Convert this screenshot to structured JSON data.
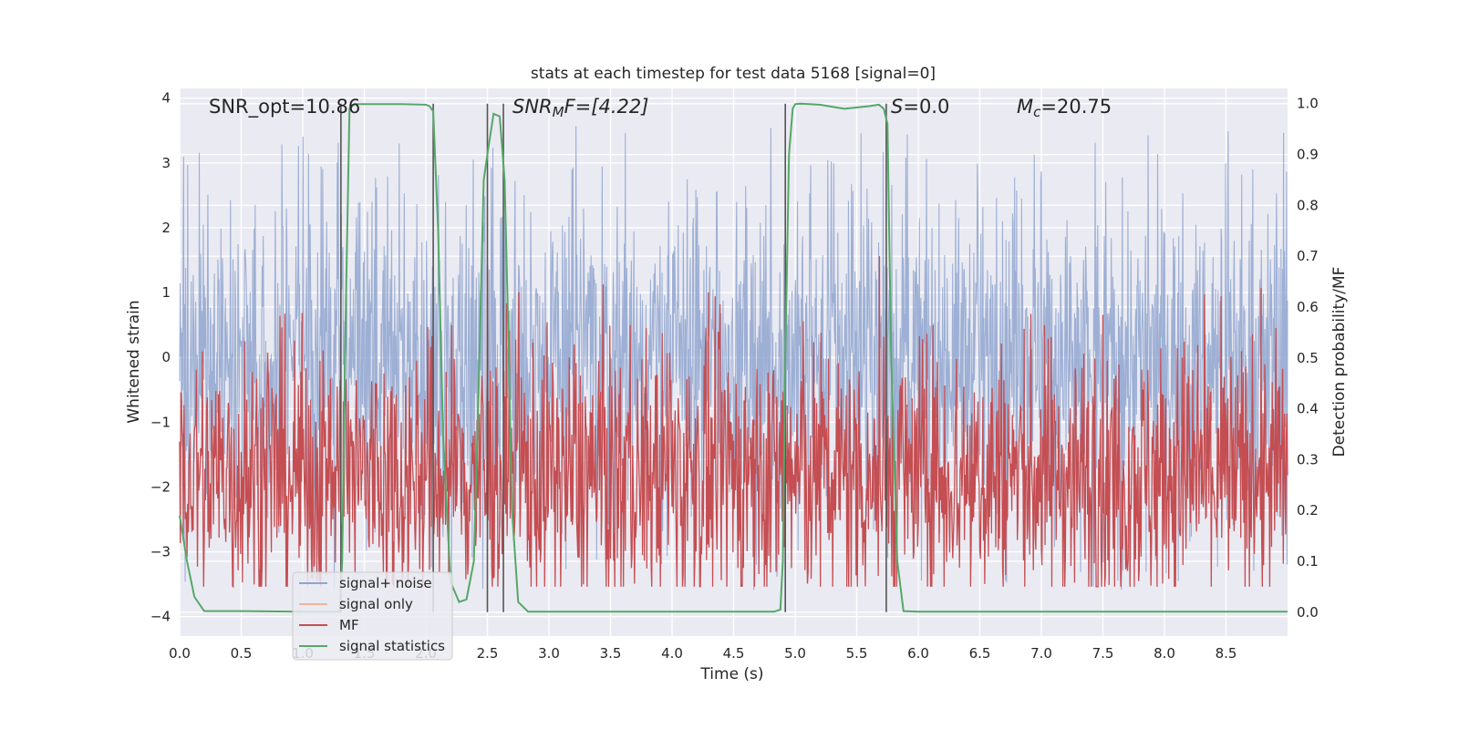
{
  "chart_data": {
    "type": "line",
    "title": "stats at each timestep for test data 5168 [signal=0]",
    "xlabel": "Time (s)",
    "ylabel_left": "Whitened strain",
    "ylabel_right": "Detection probability/MF",
    "xlim": [
      0,
      9.0
    ],
    "ylim_left": [
      -4.3,
      4.15
    ],
    "ylim_right": [
      -0.047,
      1.03
    ],
    "x_ticks": [
      0.0,
      0.5,
      1.0,
      1.5,
      2.0,
      2.5,
      3.0,
      3.5,
      4.0,
      4.5,
      5.0,
      5.5,
      6.0,
      6.5,
      7.0,
      7.5,
      8.0,
      8.5
    ],
    "x_tick_labels": [
      "0.0",
      "0.5",
      "1.0",
      "1.5",
      "2.0",
      "2.5",
      "3.0",
      "3.5",
      "4.0",
      "4.5",
      "5.0",
      "5.5",
      "6.0",
      "6.5",
      "7.0",
      "7.5",
      "8.0",
      "8.5"
    ],
    "y_left_ticks": [
      4,
      3,
      2,
      1,
      0,
      -1,
      -2,
      -3,
      -4
    ],
    "y_left_tick_labels": [
      "4",
      "3",
      "2",
      "1",
      "0",
      "−1",
      "−2",
      "−3",
      "−4"
    ],
    "y_right_ticks": [
      1.0,
      0.9,
      0.8,
      0.7,
      0.6,
      0.5,
      0.4,
      0.3,
      0.2,
      0.1,
      0.0
    ],
    "y_right_tick_labels": [
      "1.0",
      "0.9",
      "0.8",
      "0.7",
      "0.6",
      "0.5",
      "0.4",
      "0.3",
      "0.2",
      "0.1",
      "0.0"
    ],
    "annotations": {
      "snr_opt": "SNR_opt=10.86",
      "snr_mf_main": "SNR",
      "snr_mf_sub": "M",
      "snr_mf_rest": "F=[4.22]",
      "s_italic": "S",
      "s_rest": "=0.0",
      "mc_main": "M",
      "mc_sub": "c",
      "mc_rest": "=20.75"
    },
    "legend": {
      "position": "lower-left",
      "entries": [
        {
          "label": "signal+ noise",
          "color": "#8fa5cf"
        },
        {
          "label": "signal only",
          "color": "#f0b59a"
        },
        {
          "label": "MF",
          "color": "#c44e52"
        },
        {
          "label": "signal statistics",
          "color": "#55a868"
        }
      ]
    },
    "vertical_lines_x": [
      1.31,
      2.06,
      2.5,
      2.63,
      4.92,
      5.74
    ],
    "series": [
      {
        "name": "signal statistics",
        "axis": "right",
        "color": "#55a868",
        "x": [
          0.0,
          0.06,
          0.12,
          0.2,
          0.5,
          1.0,
          1.3,
          1.32,
          1.35,
          1.38,
          1.42,
          1.5,
          1.8,
          2.0,
          2.03,
          2.06,
          2.1,
          2.14,
          2.2,
          2.27,
          2.33,
          2.39,
          2.43,
          2.47,
          2.5,
          2.55,
          2.6,
          2.64,
          2.67,
          2.7,
          2.75,
          2.83,
          3.0,
          4.0,
          4.83,
          4.88,
          4.9,
          4.92,
          4.95,
          4.98,
          5.0,
          5.04,
          5.2,
          5.4,
          5.6,
          5.68,
          5.72,
          5.75,
          5.78,
          5.83,
          5.88,
          6.0,
          7.0,
          8.0,
          9.0
        ],
        "y": [
          0.19,
          0.1,
          0.03,
          0.002,
          0.002,
          0.001,
          0.001,
          0.1,
          0.6,
          0.99,
          0.999,
          0.999,
          0.999,
          0.998,
          0.995,
          0.985,
          0.75,
          0.35,
          0.06,
          0.02,
          0.025,
          0.1,
          0.45,
          0.85,
          0.9,
          0.98,
          0.975,
          0.85,
          0.55,
          0.2,
          0.02,
          0.001,
          0.001,
          0.001,
          0.001,
          0.005,
          0.1,
          0.5,
          0.9,
          0.99,
          0.999,
          1.0,
          0.998,
          0.99,
          0.995,
          0.998,
          0.99,
          0.96,
          0.5,
          0.1,
          0.002,
          0.001,
          0.001,
          0.001,
          0.001
        ]
      },
      {
        "name": "MF",
        "axis": "left",
        "color": "#c44e52",
        "baseline": 0.27,
        "band": [
          0.05,
          0.7
        ]
      },
      {
        "name": "signal+ noise",
        "axis": "left",
        "color": "#8fa5cf",
        "envelope": [
          -3.95,
          3.6
        ]
      }
    ]
  }
}
